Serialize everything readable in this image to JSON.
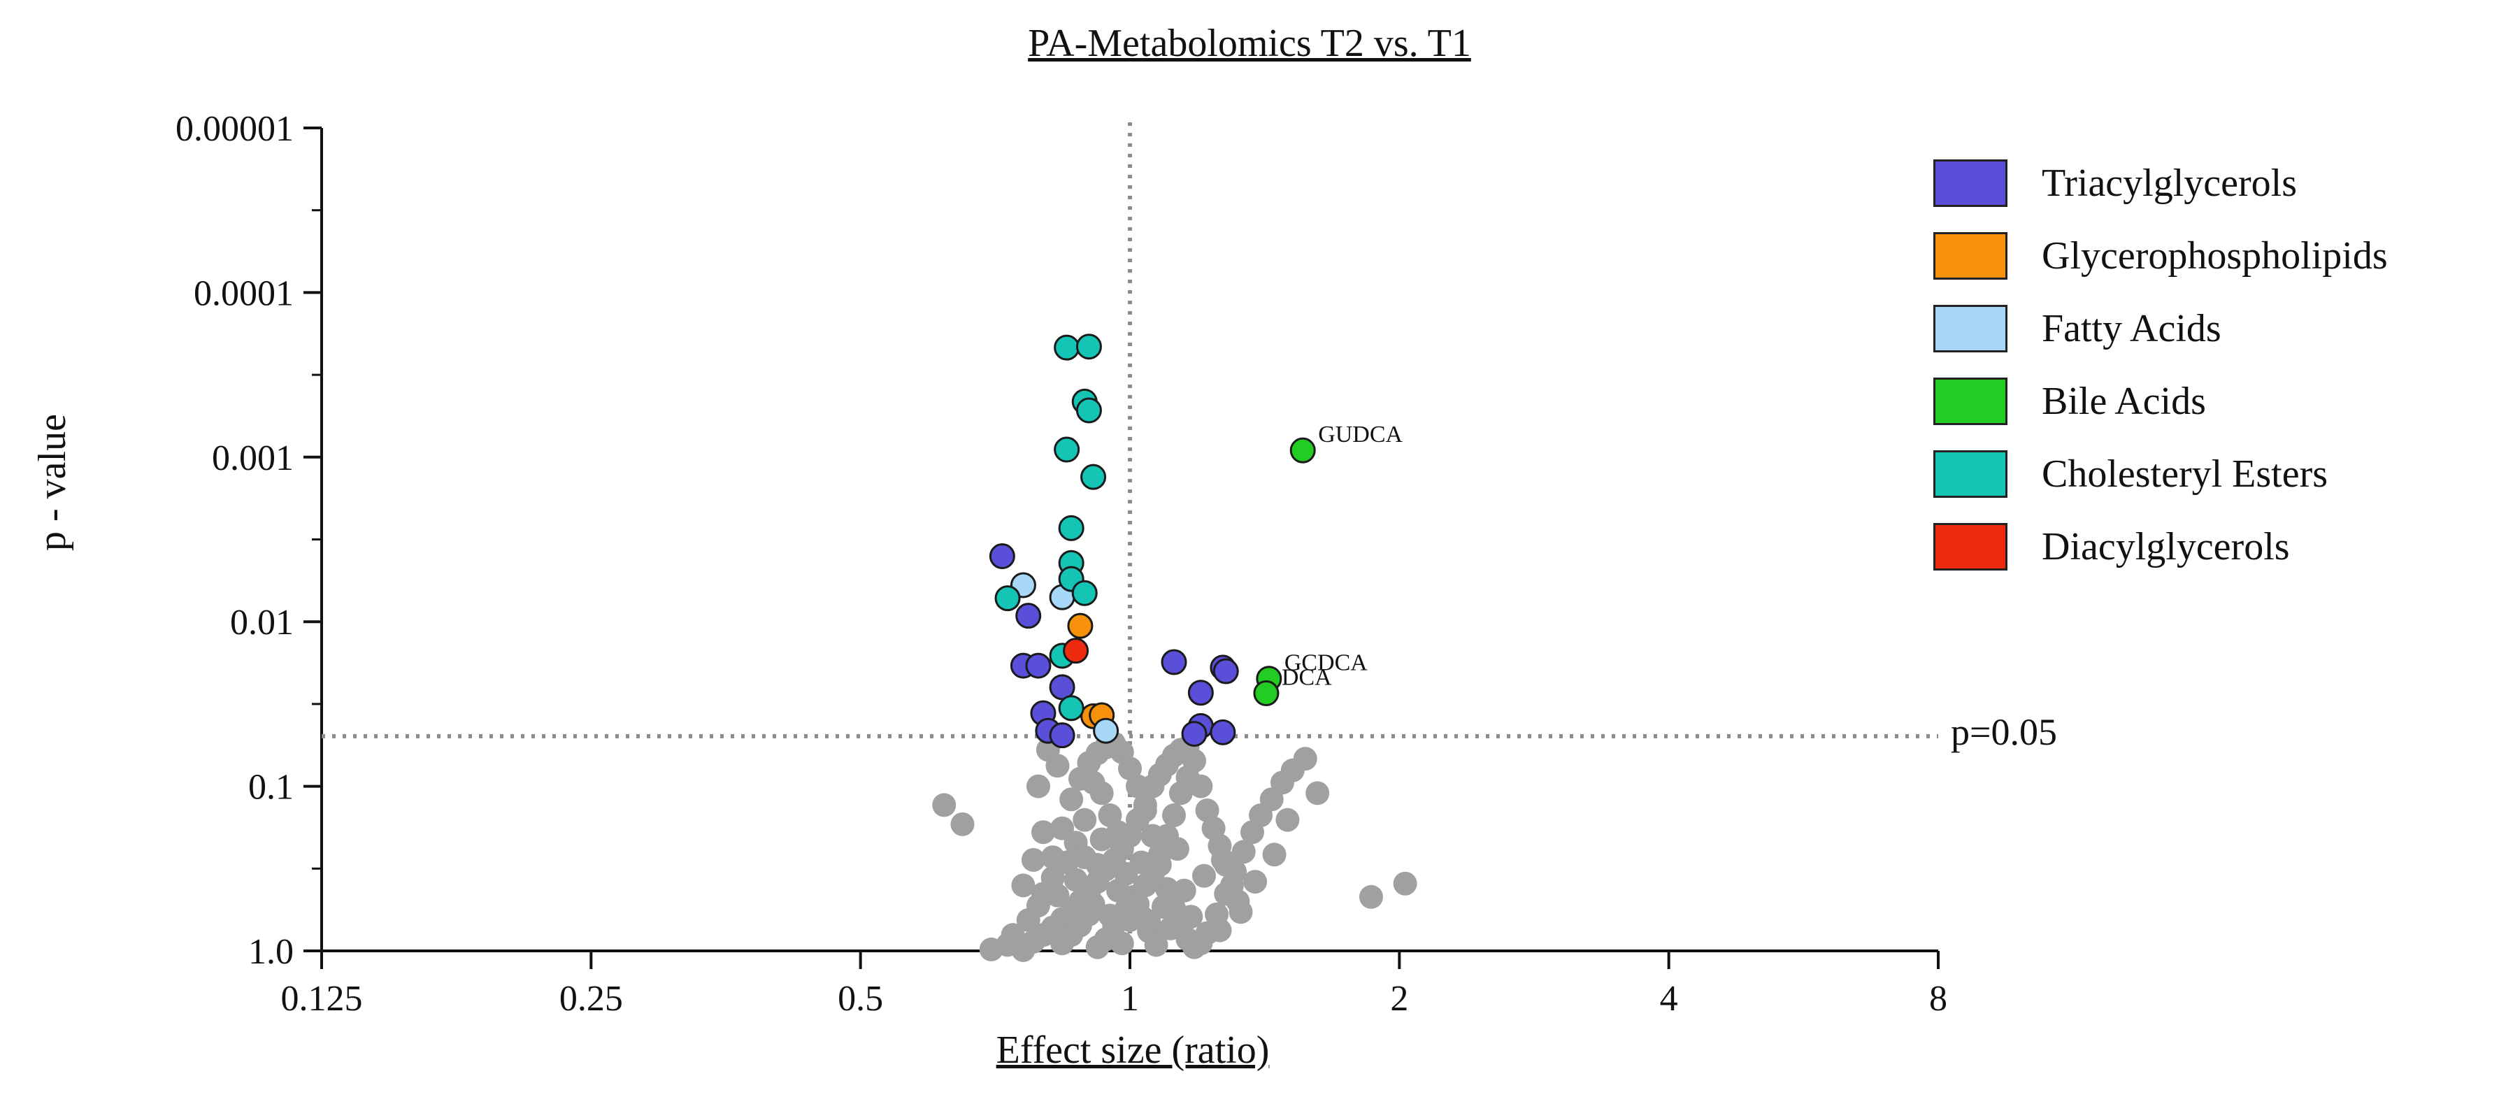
{
  "chart_data": {
    "type": "scatter",
    "title": "PA-Metabolomics T2 vs. T1",
    "xlabel": "Effect size (ratio)",
    "ylabel": "p - value",
    "x_scale": "log2",
    "y_scale": "log10-reversed",
    "xlim": [
      0.125,
      8
    ],
    "ylim": [
      1.0,
      1e-05
    ],
    "x_ticks": [
      0.125,
      0.25,
      0.5,
      1,
      2,
      4,
      8
    ],
    "x_tick_labels": [
      "0.125",
      "0.25",
      "0.5",
      "1",
      "2",
      "4",
      "8"
    ],
    "y_ticks": [
      1e-05,
      0.0001,
      0.001,
      0.01,
      0.1,
      1.0
    ],
    "y_tick_labels": [
      "0.00001",
      "0.0001",
      "0.001",
      "0.01",
      "0.1",
      "1.0"
    ],
    "threshold": {
      "p": 0.05,
      "label": "p=0.05",
      "x_ref": 1
    },
    "colors": {
      "Triacylglycerols": "#5a4fd8",
      "Glycerophospholipids": "#f7900a",
      "Fatty Acids": "#a8d8f8",
      "Bile Acids": "#22cc22",
      "Cholesteryl Esters": "#14c4b4",
      "Diacylglycerols": "#ee2a10",
      "Not significant": "#a0a0a0"
    },
    "legend": [
      "Triacylglycerols",
      "Glycerophospholipids",
      "Fatty Acids",
      "Bile Acids",
      "Cholesteryl Esters",
      "Diacylglycerols"
    ],
    "series": [
      {
        "name": "Triacylglycerols",
        "points": [
          [
            0.72,
            0.004
          ],
          [
            0.76,
            0.0185
          ],
          [
            0.79,
            0.0185
          ],
          [
            0.77,
            0.0092
          ],
          [
            0.8,
            0.036
          ],
          [
            0.81,
            0.046
          ],
          [
            0.84,
            0.049
          ],
          [
            0.84,
            0.025
          ],
          [
            1.12,
            0.0176
          ],
          [
            1.27,
            0.019
          ],
          [
            1.28,
            0.02
          ],
          [
            1.2,
            0.027
          ],
          [
            1.2,
            0.043
          ],
          [
            1.18,
            0.048
          ],
          [
            1.27,
            0.047
          ]
        ]
      },
      {
        "name": "Glycerophospholipids",
        "points": [
          [
            0.88,
            0.0106
          ],
          [
            0.91,
            0.0375
          ],
          [
            0.93,
            0.037
          ]
        ]
      },
      {
        "name": "Fatty Acids",
        "points": [
          [
            0.76,
            0.006
          ],
          [
            0.84,
            0.0071
          ],
          [
            0.94,
            0.046
          ]
        ]
      },
      {
        "name": "Bile Acids",
        "labeled": true,
        "points": [
          {
            "x": 1.56,
            "p": 0.00091,
            "label": "GUDCA"
          },
          {
            "x": 1.43,
            "p": 0.0222,
            "label": "GCDCA"
          },
          {
            "x": 1.42,
            "p": 0.0272,
            "label": "DCA"
          }
        ]
      },
      {
        "name": "Cholesteryl Esters",
        "points": [
          [
            0.85,
            0.000216
          ],
          [
            0.9,
            0.000213
          ],
          [
            0.89,
            0.00046
          ],
          [
            0.9,
            0.00052
          ],
          [
            0.85,
            0.0009
          ],
          [
            0.91,
            0.00132
          ],
          [
            0.86,
            0.0027
          ],
          [
            0.86,
            0.0044
          ],
          [
            0.86,
            0.0055
          ],
          [
            0.89,
            0.0067
          ],
          [
            0.73,
            0.0072
          ],
          [
            0.84,
            0.0161
          ],
          [
            0.86,
            0.0335
          ]
        ]
      },
      {
        "name": "Diacylglycerols",
        "points": [
          [
            0.87,
            0.015
          ]
        ]
      },
      {
        "name": "Not significant",
        "points": [
          [
            0.62,
            0.13
          ],
          [
            0.65,
            0.17
          ],
          [
            0.7,
            0.98
          ],
          [
            0.73,
            0.92
          ],
          [
            0.76,
            0.99
          ],
          [
            0.78,
            0.88
          ],
          [
            0.8,
            0.8
          ],
          [
            0.82,
            0.72
          ],
          [
            0.84,
            0.64
          ],
          [
            0.86,
            0.58
          ],
          [
            0.88,
            0.5
          ],
          [
            0.9,
            0.44
          ],
          [
            0.92,
            0.38
          ],
          [
            0.94,
            0.32
          ],
          [
            0.96,
            0.28
          ],
          [
            0.98,
            0.24
          ],
          [
            1.0,
            0.2
          ],
          [
            1.02,
            0.16
          ],
          [
            1.04,
            0.13
          ],
          [
            1.06,
            0.1
          ],
          [
            1.08,
            0.085
          ],
          [
            1.1,
            0.074
          ],
          [
            1.12,
            0.065
          ],
          [
            1.14,
            0.06
          ],
          [
            1.16,
            0.058
          ],
          [
            0.74,
            0.8
          ],
          [
            0.77,
            0.65
          ],
          [
            0.8,
            0.45
          ],
          [
            0.82,
            0.27
          ],
          [
            0.84,
            0.18
          ],
          [
            0.86,
            0.12
          ],
          [
            0.88,
            0.09
          ],
          [
            0.9,
            0.072
          ],
          [
            0.92,
            0.063
          ],
          [
            0.94,
            0.058
          ],
          [
            0.96,
            0.055
          ],
          [
            0.98,
            0.062
          ],
          [
            1.0,
            0.078
          ],
          [
            1.02,
            0.1
          ],
          [
            1.04,
            0.14
          ],
          [
            1.06,
            0.2
          ],
          [
            1.08,
            0.3
          ],
          [
            1.1,
            0.42
          ],
          [
            1.12,
            0.55
          ],
          [
            1.14,
            0.7
          ],
          [
            1.16,
            0.85
          ],
          [
            1.18,
            0.95
          ],
          [
            1.2,
            0.9
          ],
          [
            1.22,
            0.78
          ],
          [
            1.25,
            0.6
          ],
          [
            1.28,
            0.45
          ],
          [
            1.31,
            0.33
          ],
          [
            1.34,
            0.25
          ],
          [
            1.37,
            0.19
          ],
          [
            1.4,
            0.15
          ],
          [
            1.44,
            0.12
          ],
          [
            1.48,
            0.095
          ],
          [
            1.52,
            0.08
          ],
          [
            1.57,
            0.068
          ],
          [
            1.62,
            0.11
          ],
          [
            1.5,
            0.16
          ],
          [
            1.45,
            0.26
          ],
          [
            1.38,
            0.38
          ],
          [
            1.33,
            0.58
          ],
          [
            1.26,
            0.75
          ],
          [
            0.79,
            0.1
          ],
          [
            0.81,
            0.06
          ],
          [
            0.83,
            0.075
          ],
          [
            0.8,
            0.19
          ],
          [
            0.78,
            0.28
          ],
          [
            0.76,
            0.4
          ],
          [
            0.79,
            0.53
          ],
          [
            0.82,
            0.36
          ],
          [
            0.85,
            0.29
          ],
          [
            0.87,
            0.22
          ],
          [
            0.89,
            0.16
          ],
          [
            0.91,
            0.095
          ],
          [
            0.93,
            0.11
          ],
          [
            0.95,
            0.15
          ],
          [
            0.97,
            0.19
          ],
          [
            0.99,
            0.34
          ],
          [
            1.01,
            0.47
          ],
          [
            1.03,
            0.62
          ],
          [
            1.05,
            0.76
          ],
          [
            1.07,
            0.92
          ],
          [
            0.96,
            0.7
          ],
          [
            0.94,
            0.85
          ],
          [
            0.92,
            0.95
          ],
          [
            0.98,
            0.9
          ],
          [
            1.0,
            0.65
          ],
          [
            1.02,
            0.52
          ],
          [
            1.04,
            0.4
          ],
          [
            1.06,
            0.35
          ],
          [
            1.08,
            0.26
          ],
          [
            1.1,
            0.2
          ],
          [
            1.12,
            0.15
          ],
          [
            1.14,
            0.11
          ],
          [
            1.16,
            0.088
          ],
          [
            1.18,
            0.07
          ],
          [
            1.2,
            0.1
          ],
          [
            1.22,
            0.14
          ],
          [
            1.24,
            0.18
          ],
          [
            1.26,
            0.23
          ],
          [
            1.28,
            0.3
          ],
          [
            1.3,
            0.4
          ],
          [
            1.32,
            0.5
          ],
          [
            0.9,
            0.6
          ],
          [
            0.88,
            0.7
          ],
          [
            0.86,
            0.8
          ],
          [
            0.84,
            0.9
          ],
          [
            1.86,
            0.47
          ],
          [
            2.03,
            0.39
          ],
          [
            0.92,
            0.3
          ],
          [
            0.97,
            0.43
          ],
          [
            1.03,
            0.29
          ],
          [
            1.09,
            0.54
          ],
          [
            1.15,
            0.43
          ],
          [
            1.21,
            0.35
          ],
          [
            1.27,
            0.28
          ],
          [
            0.83,
            0.46
          ],
          [
            0.87,
            0.37
          ],
          [
            0.91,
            0.52
          ],
          [
            0.95,
            0.61
          ],
          [
            0.99,
            0.56
          ],
          [
            1.05,
            0.66
          ],
          [
            1.11,
            0.73
          ],
          [
            1.17,
            0.62
          ],
          [
            0.89,
            0.27
          ],
          [
            0.93,
            0.21
          ],
          [
            1.13,
            0.24
          ]
        ]
      }
    ]
  }
}
